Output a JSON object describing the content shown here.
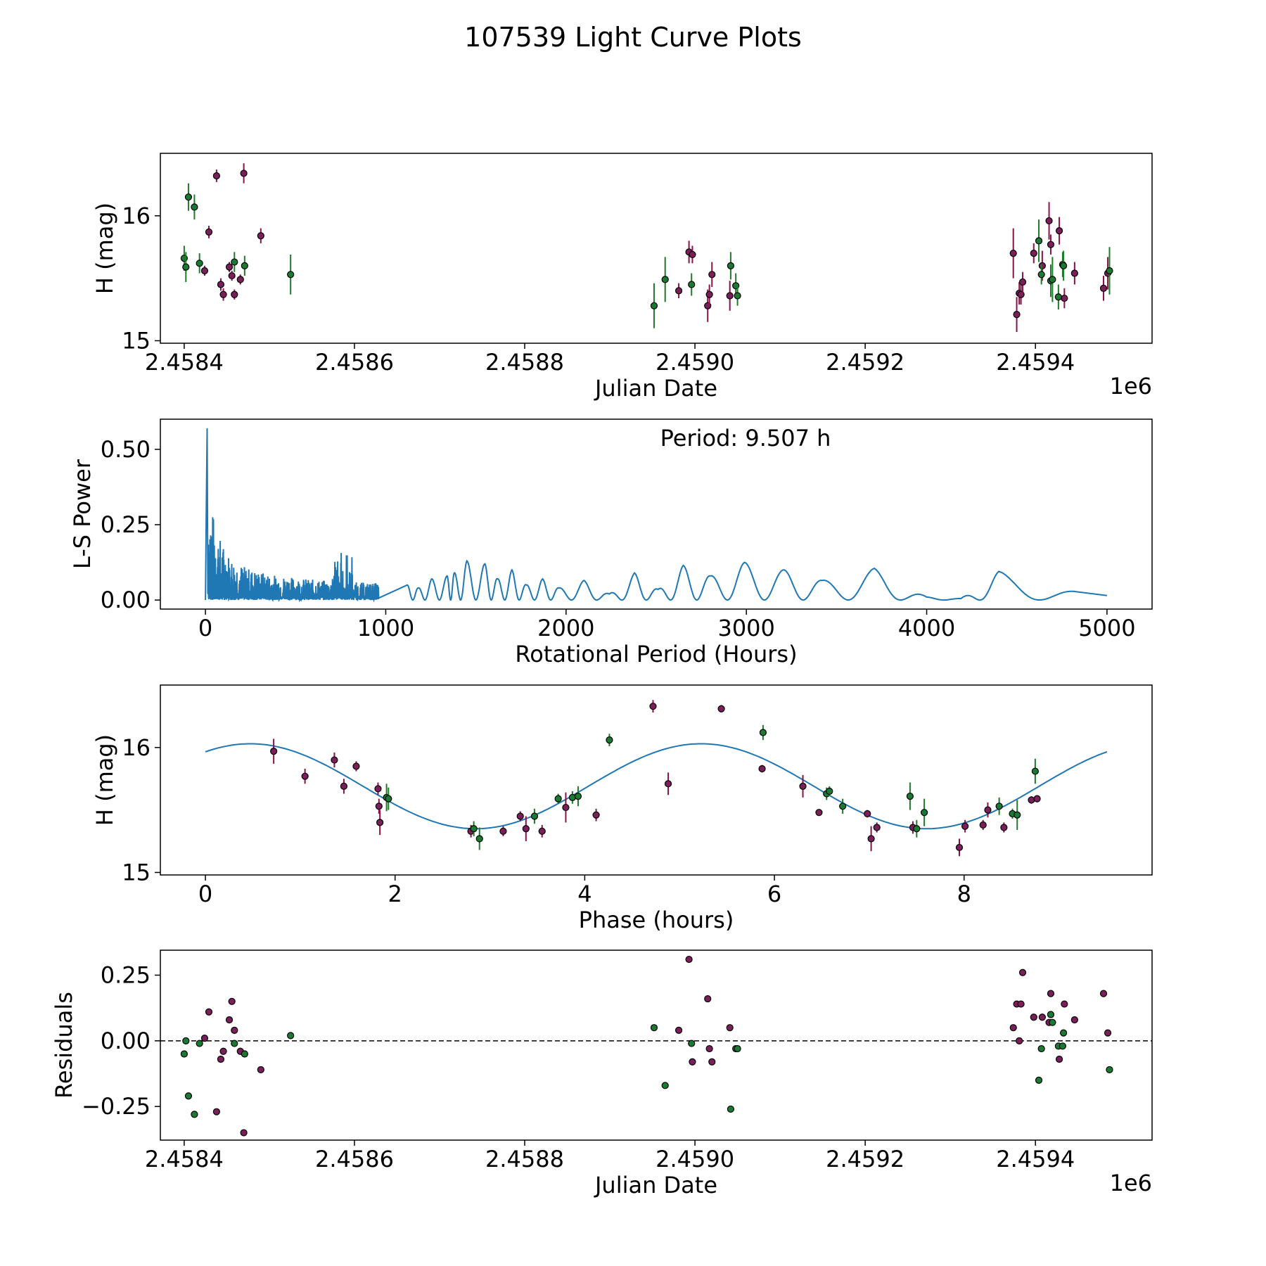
{
  "figure": {
    "title": "107539 Light Curve Plots"
  },
  "colors": {
    "magenta": "#7a1f5a",
    "green": "#1a7a33",
    "magenta_err": "#8a1248",
    "green_err": "#1f7a2a",
    "curve": "#1f77b4",
    "axis": "#000000"
  },
  "chart_data": [
    {
      "id": "lightcurve",
      "type": "scatter",
      "title": "",
      "xlabel": "Julian Date",
      "ylabel": "H (mag)",
      "offset_text": "1e6",
      "xlim": [
        2458372,
        2459537
      ],
      "ylim": [
        14.98,
        16.5
      ],
      "y_inverted": false,
      "xticks": [
        2458400,
        2458600,
        2458800,
        2459000,
        2459200,
        2459400
      ],
      "xtick_labels": [
        "2.4584",
        "2.4586",
        "2.4588",
        "2.4590",
        "2.4592",
        "2.4594"
      ],
      "yticks": [
        15,
        16
      ],
      "ytick_labels": [
        "15",
        "16"
      ],
      "series": [
        {
          "name": "filter-magenta",
          "color_key": "magenta",
          "points": [
            [
              2458424,
              15.56,
              0.04
            ],
            [
              2458429,
              15.87,
              0.05
            ],
            [
              2458438,
              16.32,
              0.05
            ],
            [
              2458443,
              15.45,
              0.05
            ],
            [
              2458446,
              15.37,
              0.05
            ],
            [
              2458453,
              15.59,
              0.04
            ],
            [
              2458456,
              15.52,
              0.04
            ],
            [
              2458459,
              15.37,
              0.04
            ],
            [
              2458466,
              15.49,
              0.04
            ],
            [
              2458470,
              16.34,
              0.08
            ],
            [
              2458490,
              15.84,
              0.06
            ],
            [
              2458981,
              15.4,
              0.06
            ],
            [
              2458993,
              15.71,
              0.09
            ],
            [
              2458997,
              15.69,
              0.07
            ],
            [
              2459015,
              15.28,
              0.13
            ],
            [
              2459017,
              15.37,
              0.08
            ],
            [
              2459020,
              15.53,
              0.1
            ],
            [
              2459041,
              15.36,
              0.12
            ],
            [
              2459374,
              15.7,
              0.2
            ],
            [
              2459378,
              15.21,
              0.14
            ],
            [
              2459381,
              15.38,
              0.09
            ],
            [
              2459383,
              15.37,
              0.08
            ],
            [
              2459385,
              15.47,
              0.08
            ],
            [
              2459398,
              15.7,
              0.08
            ],
            [
              2459408,
              15.6,
              0.12
            ],
            [
              2459416,
              15.96,
              0.15
            ],
            [
              2459418,
              15.77,
              0.08
            ],
            [
              2459428,
              15.88,
              0.11
            ],
            [
              2459434,
              15.34,
              0.08
            ],
            [
              2459446,
              15.54,
              0.09
            ],
            [
              2459480,
              15.42,
              0.1
            ],
            [
              2459485,
              15.54,
              0.13
            ]
          ]
        },
        {
          "name": "filter-green",
          "color_key": "green",
          "points": [
            [
              2458400,
              15.66,
              0.1
            ],
            [
              2458402,
              15.59,
              0.12
            ],
            [
              2458405,
              16.15,
              0.11
            ],
            [
              2458412,
              16.07,
              0.1
            ],
            [
              2458418,
              15.62,
              0.08
            ],
            [
              2458459,
              15.63,
              0.08
            ],
            [
              2458471,
              15.6,
              0.08
            ],
            [
              2458525,
              15.53,
              0.16
            ],
            [
              2458952,
              15.28,
              0.18
            ],
            [
              2458965,
              15.49,
              0.18
            ],
            [
              2458996,
              15.45,
              0.09
            ],
            [
              2459042,
              15.6,
              0.11
            ],
            [
              2459048,
              15.44,
              0.1
            ],
            [
              2459050,
              15.36,
              0.08
            ],
            [
              2459404,
              15.8,
              0.17
            ],
            [
              2459407,
              15.53,
              0.08
            ],
            [
              2459418,
              15.48,
              0.13
            ],
            [
              2459420,
              15.49,
              0.18
            ],
            [
              2459427,
              15.35,
              0.1
            ],
            [
              2459432,
              15.61,
              0.1
            ],
            [
              2459433,
              15.6,
              0.12
            ],
            [
              2459487,
              15.56,
              0.19
            ]
          ]
        }
      ]
    },
    {
      "id": "periodogram",
      "type": "line",
      "title": "",
      "xlabel": "Rotational Period (Hours)",
      "ylabel": "L-S Power",
      "annotation": "Period: 9.507 h",
      "xlim": [
        -250,
        5250
      ],
      "ylim": [
        -0.03,
        0.6
      ],
      "xticks": [
        0,
        1000,
        2000,
        3000,
        4000,
        5000
      ],
      "xtick_labels": [
        "0",
        "1000",
        "2000",
        "3000",
        "4000",
        "5000"
      ],
      "yticks": [
        0,
        0.25,
        0.5
      ],
      "ytick_labels": [
        "0.00",
        "0.25",
        "0.50"
      ],
      "peak": {
        "x": 9.507,
        "y": 0.57
      },
      "x_range": [
        0,
        5000
      ],
      "smooth_peaks": [
        [
          1120,
          0.05
        ],
        [
          1180,
          0.04
        ],
        [
          1255,
          0.07
        ],
        [
          1340,
          0.08
        ],
        [
          1380,
          0.09
        ],
        [
          1450,
          0.13
        ],
        [
          1550,
          0.12
        ],
        [
          1620,
          0.07
        ],
        [
          1700,
          0.1
        ],
        [
          1780,
          0.05
        ],
        [
          1870,
          0.07
        ],
        [
          1960,
          0.04
        ],
        [
          2100,
          0.065
        ],
        [
          2240,
          0.02
        ],
        [
          2380,
          0.09
        ],
        [
          2510,
          0.035
        ],
        [
          2650,
          0.115
        ],
        [
          2800,
          0.08
        ],
        [
          2990,
          0.125
        ],
        [
          3210,
          0.1
        ],
        [
          3420,
          0.065
        ],
        [
          3710,
          0.105
        ],
        [
          4000,
          0.01
        ],
        [
          4190,
          0.005
        ],
        [
          4400,
          0.095
        ],
        [
          4850,
          0.025
        ]
      ]
    },
    {
      "id": "phased",
      "type": "scatter",
      "title": "",
      "xlabel": "Phase (hours)",
      "ylabel": "H (mag)",
      "xlim": [
        -0.475,
        9.982
      ],
      "ylim": [
        14.98,
        16.5
      ],
      "xticks": [
        0,
        2,
        4,
        6,
        8
      ],
      "xtick_labels": [
        "0",
        "2",
        "4",
        "6",
        "8"
      ],
      "yticks": [
        15,
        16
      ],
      "ytick_labels": [
        "15",
        "16"
      ],
      "model": {
        "mean": 15.69,
        "amplitude": 0.34,
        "period": 9.507,
        "phase_shift": 2.85
      },
      "series": [
        {
          "name": "filter-magenta",
          "color_key": "magenta",
          "points": [
            [
              0.72,
              15.97,
              0.1
            ],
            [
              1.05,
              15.77,
              0.06
            ],
            [
              1.36,
              15.9,
              0.06
            ],
            [
              1.46,
              15.69,
              0.06
            ],
            [
              1.59,
              15.85,
              0.04
            ],
            [
              1.82,
              15.67,
              0.05
            ],
            [
              1.83,
              15.53,
              0.06
            ],
            [
              1.84,
              15.4,
              0.1
            ],
            [
              2.8,
              15.33,
              0.05
            ],
            [
              3.14,
              15.33,
              0.04
            ],
            [
              3.32,
              15.45,
              0.04
            ],
            [
              3.38,
              15.35,
              0.1
            ],
            [
              3.55,
              15.33,
              0.05
            ],
            [
              3.8,
              15.52,
              0.12
            ],
            [
              4.12,
              15.46,
              0.05
            ],
            [
              4.72,
              16.33,
              0.05
            ],
            [
              4.88,
              15.71,
              0.09
            ],
            [
              5.44,
              16.31,
              0.03
            ],
            [
              5.87,
              15.83,
              0.03
            ],
            [
              6.3,
              15.69,
              0.09
            ],
            [
              6.47,
              15.48,
              0.02
            ],
            [
              6.98,
              15.47,
              0.03
            ],
            [
              7.02,
              15.27,
              0.1
            ],
            [
              7.08,
              15.36,
              0.04
            ],
            [
              7.46,
              15.36,
              0.05
            ],
            [
              7.95,
              15.2,
              0.07
            ],
            [
              8.01,
              15.37,
              0.05
            ],
            [
              8.2,
              15.38,
              0.04
            ],
            [
              8.25,
              15.5,
              0.06
            ],
            [
              8.42,
              15.36,
              0.04
            ],
            [
              8.71,
              15.58,
              0.03
            ],
            [
              8.77,
              15.59,
              0.02
            ]
          ]
        },
        {
          "name": "filter-green",
          "color_key": "green",
          "points": [
            [
              1.91,
              15.6,
              0.11
            ],
            [
              1.93,
              15.59,
              0.09
            ],
            [
              2.83,
              15.35,
              0.06
            ],
            [
              2.89,
              15.27,
              0.09
            ],
            [
              3.47,
              15.45,
              0.06
            ],
            [
              3.72,
              15.59,
              0.04
            ],
            [
              3.87,
              15.6,
              0.05
            ],
            [
              3.93,
              15.61,
              0.08
            ],
            [
              4.26,
              16.06,
              0.05
            ],
            [
              5.88,
              16.12,
              0.06
            ],
            [
              6.55,
              15.63,
              0.05
            ],
            [
              6.58,
              15.65,
              0.04
            ],
            [
              6.72,
              15.53,
              0.06
            ],
            [
              7.43,
              15.61,
              0.11
            ],
            [
              7.5,
              15.35,
              0.07
            ],
            [
              7.58,
              15.48,
              0.11
            ],
            [
              8.37,
              15.53,
              0.07
            ],
            [
              8.51,
              15.47,
              0.04
            ],
            [
              8.56,
              15.46,
              0.12
            ],
            [
              8.75,
              15.81,
              0.1
            ]
          ]
        }
      ]
    },
    {
      "id": "residuals",
      "type": "scatter",
      "title": "",
      "xlabel": "Julian Date",
      "ylabel": "Residuals",
      "offset_text": "1e6",
      "xlim": [
        2458372,
        2459537
      ],
      "ylim": [
        -0.378,
        0.345
      ],
      "xticks": [
        2458400,
        2458600,
        2458800,
        2459000,
        2459200,
        2459400
      ],
      "xtick_labels": [
        "2.4584",
        "2.4586",
        "2.4588",
        "2.4590",
        "2.4592",
        "2.4594"
      ],
      "yticks": [
        -0.25,
        0,
        0.25
      ],
      "ytick_labels": [
        "−0.25",
        "0.00",
        "0.25"
      ],
      "reference_line": 0,
      "series": [
        {
          "name": "filter-magenta",
          "color_key": "magenta",
          "points": [
            [
              2458424,
              0.01
            ],
            [
              2458429,
              0.11
            ],
            [
              2458438,
              -0.27
            ],
            [
              2458443,
              -0.07
            ],
            [
              2458446,
              -0.04
            ],
            [
              2458453,
              0.08
            ],
            [
              2458456,
              0.15
            ],
            [
              2458459,
              0.04
            ],
            [
              2458466,
              -0.04
            ],
            [
              2458470,
              -0.35
            ],
            [
              2458490,
              -0.11
            ],
            [
              2458981,
              0.04
            ],
            [
              2458993,
              0.31
            ],
            [
              2458997,
              -0.08
            ],
            [
              2459015,
              0.16
            ],
            [
              2459017,
              -0.03
            ],
            [
              2459020,
              -0.08
            ],
            [
              2459041,
              0.05
            ],
            [
              2459374,
              0.05
            ],
            [
              2459378,
              0.14
            ],
            [
              2459381,
              0.0
            ],
            [
              2459383,
              0.14
            ],
            [
              2459385,
              0.26
            ],
            [
              2459398,
              0.09
            ],
            [
              2459408,
              0.09
            ],
            [
              2459416,
              0.07
            ],
            [
              2459418,
              0.18
            ],
            [
              2459428,
              -0.07
            ],
            [
              2459434,
              0.14
            ],
            [
              2459446,
              0.08
            ],
            [
              2459480,
              0.18
            ],
            [
              2459485,
              0.03
            ]
          ]
        },
        {
          "name": "filter-green",
          "color_key": "green",
          "points": [
            [
              2458400,
              -0.05
            ],
            [
              2458402,
              0.0
            ],
            [
              2458405,
              -0.21
            ],
            [
              2458412,
              -0.28
            ],
            [
              2458418,
              -0.01
            ],
            [
              2458459,
              -0.01
            ],
            [
              2458471,
              -0.05
            ],
            [
              2458525,
              0.02
            ],
            [
              2458952,
              0.05
            ],
            [
              2458965,
              -0.17
            ],
            [
              2458996,
              -0.01
            ],
            [
              2459042,
              -0.26
            ],
            [
              2459048,
              -0.03
            ],
            [
              2459050,
              -0.03
            ],
            [
              2459404,
              -0.15
            ],
            [
              2459407,
              -0.03
            ],
            [
              2459418,
              0.1
            ],
            [
              2459420,
              0.07
            ],
            [
              2459427,
              -0.02
            ],
            [
              2459432,
              -0.02
            ],
            [
              2459433,
              0.03
            ],
            [
              2459487,
              -0.11
            ]
          ]
        }
      ]
    }
  ]
}
